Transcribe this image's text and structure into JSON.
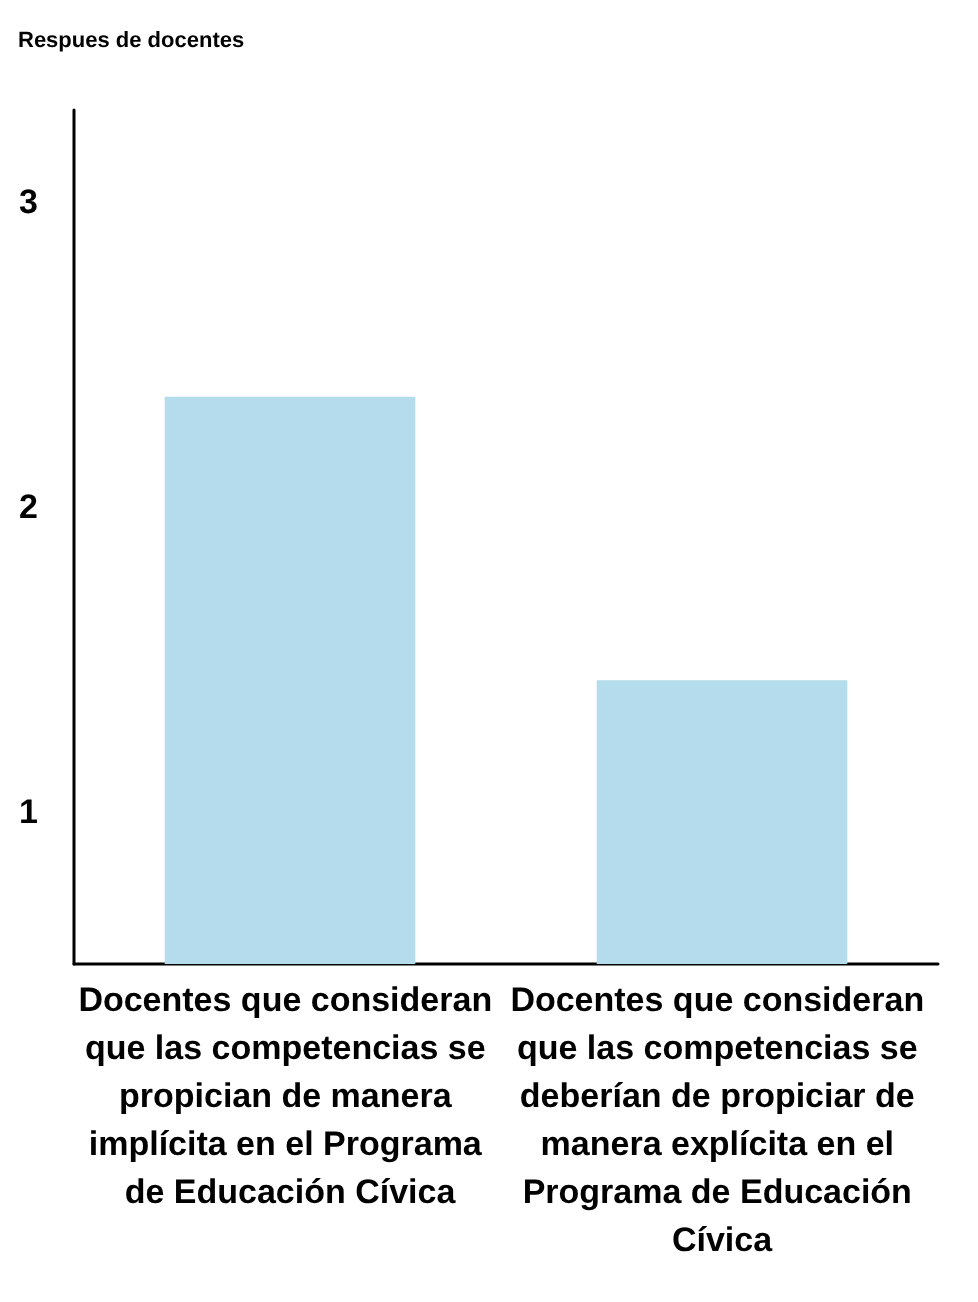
{
  "chart_data": {
    "type": "bar",
    "title": "Respues de docentes",
    "categories": [
      "Docentes que consideran que las competencias se propician de manera implícita en el Programa de Educación Cívica",
      "Docentes que consideran que las competencias se deberían de propiciar de manera explícita en el Programa de Educación Cívica"
    ],
    "values": [
      2.36,
      1.43
    ],
    "color": "#b4dcec",
    "ylim": [
      0.5,
      3.3
    ],
    "yticks": [
      1,
      2,
      3
    ],
    "grid": false
  }
}
